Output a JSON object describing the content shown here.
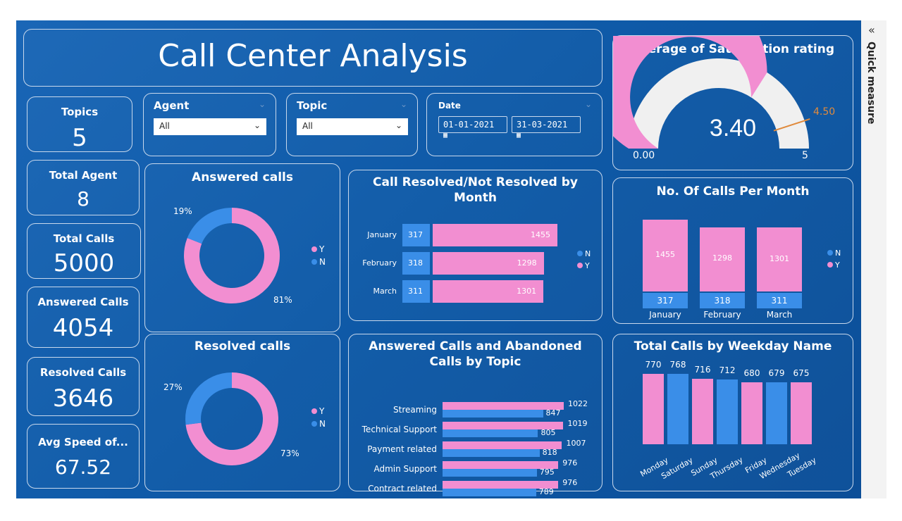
{
  "title": "Call Center Analysis",
  "side_panel": {
    "label": "Quick measure",
    "collapse_icon": "double-chevron-left-icon"
  },
  "kpis": [
    {
      "label": "Topics",
      "value": "5"
    },
    {
      "label": "Total Agent",
      "value": "8"
    },
    {
      "label": "Total Calls",
      "value": "5000"
    },
    {
      "label": "Answered Calls",
      "value": "4054"
    },
    {
      "label": "Resolved Calls",
      "value": "3646"
    },
    {
      "label": "Avg Speed of...",
      "value": "67.52"
    }
  ],
  "slicers": {
    "agent": {
      "label": "Agent",
      "value": "All"
    },
    "topic": {
      "label": "Topic",
      "value": "All"
    },
    "date": {
      "label": "Date",
      "start": "01-01-2021",
      "end": "31-03-2021"
    }
  },
  "colors": {
    "Y": "#f28ed1",
    "N": "#3a8ee8",
    "background": "#1160ae",
    "gauge_track": "#f0f0f0",
    "target": "#e08a3c"
  },
  "chart_data": [
    {
      "id": "gauge",
      "type": "gauge",
      "title": "Average of Satisfaction rating",
      "value": 3.4,
      "value_label": "3.40",
      "min": 0,
      "min_label": "0.00",
      "max": 5,
      "max_label": "5",
      "target": 4.5,
      "target_label": "4.50"
    },
    {
      "id": "answered-donut",
      "type": "pie",
      "title": "Answered calls",
      "slices": [
        {
          "name": "Y",
          "value": 81,
          "label": "81%"
        },
        {
          "name": "N",
          "value": 19,
          "label": "19%"
        }
      ]
    },
    {
      "id": "resolved-donut",
      "type": "pie",
      "title": "Resolved calls",
      "slices": [
        {
          "name": "Y",
          "value": 73,
          "label": "73%"
        },
        {
          "name": "N",
          "value": 27,
          "label": "27%"
        }
      ]
    },
    {
      "id": "resolved-by-month",
      "type": "bar",
      "title": "Call Resolved/Not Resolved by Month",
      "orientation": "horizontal-stacked",
      "categories": [
        "January",
        "February",
        "March"
      ],
      "series": [
        {
          "name": "N",
          "values": [
            317,
            318,
            311
          ]
        },
        {
          "name": "Y",
          "values": [
            1455,
            1298,
            1301
          ]
        }
      ],
      "legend": [
        "N",
        "Y"
      ]
    },
    {
      "id": "calls-per-month",
      "type": "bar",
      "title": "No. Of Calls Per Month",
      "orientation": "vertical-stacked",
      "categories": [
        "January",
        "February",
        "March"
      ],
      "series": [
        {
          "name": "N",
          "values": [
            317,
            318,
            311
          ]
        },
        {
          "name": "Y",
          "values": [
            1455,
            1298,
            1301
          ]
        }
      ],
      "legend": [
        "N",
        "Y"
      ]
    },
    {
      "id": "answered-abandoned-by-topic",
      "type": "bar",
      "title": "Answered Calls and Abandoned Calls by Topic",
      "orientation": "horizontal-clustered",
      "categories": [
        "Streaming",
        "Technical Support",
        "Payment related",
        "Admin Support",
        "Contract related"
      ],
      "series": [
        {
          "values": [
            1022,
            1019,
            1007,
            976,
            976
          ]
        },
        {
          "values": [
            847,
            805,
            818,
            795,
            789
          ]
        }
      ]
    },
    {
      "id": "calls-by-weekday",
      "type": "bar",
      "title": "Total Calls by Weekday Name",
      "orientation": "vertical",
      "categories": [
        "Monday",
        "Saturday",
        "Sunday",
        "Thursday",
        "Friday",
        "Wednesday",
        "Tuesday"
      ],
      "values": [
        770,
        768,
        716,
        712,
        680,
        679,
        675
      ],
      "bar_colors": [
        "#f28ed1",
        "#3a8ee8",
        "#f28ed1",
        "#3a8ee8",
        "#f28ed1",
        "#3a8ee8",
        "#f28ed1"
      ]
    }
  ]
}
